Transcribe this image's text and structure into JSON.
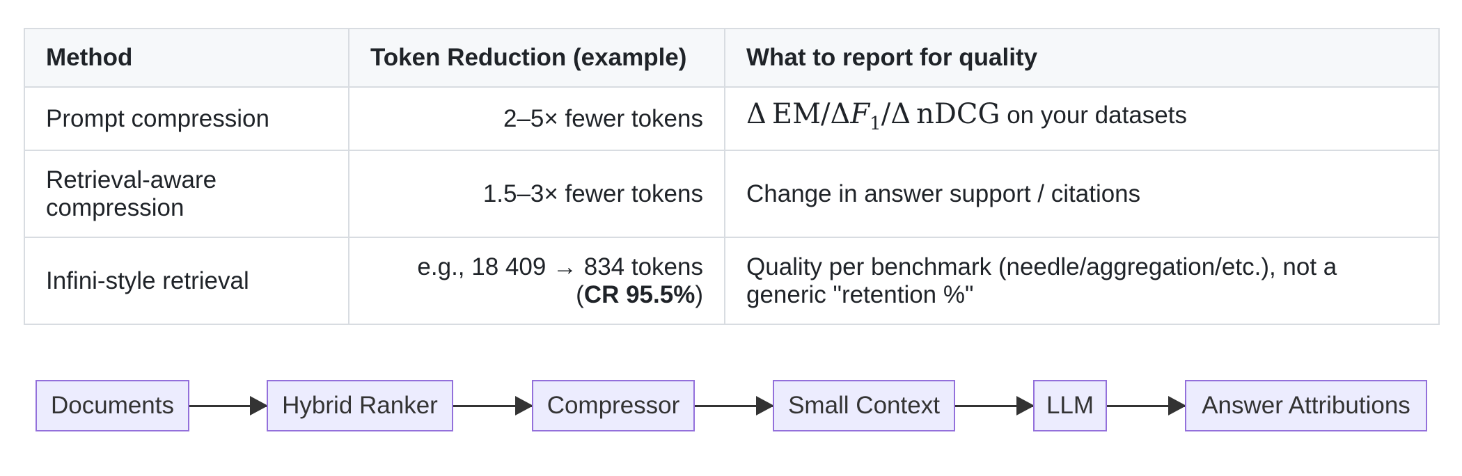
{
  "table": {
    "headers": [
      "Method",
      "Token Reduction (example)",
      "What to report for quality"
    ],
    "rows": [
      {
        "method": "Prompt compression",
        "reduction": "2–5× fewer tokens",
        "quality_tail": "on your datasets"
      },
      {
        "method": "Retrieval-aware compression",
        "reduction": "1.5–3× fewer tokens",
        "quality": "Change in answer support / citations"
      },
      {
        "method": "Infini-style retrieval",
        "reduction_line1": "e.g., 18 409 → 834 tokens",
        "reduction_cr": "CR 95.5%",
        "quality": "Quality per benchmark (needle/aggregation/etc.), not a generic \"retention %\""
      }
    ]
  },
  "flow": {
    "nodes": [
      "Documents",
      "Hybrid Ranker",
      "Compressor",
      "Small Context",
      "LLM",
      "Answer Attributions"
    ]
  },
  "colors": {
    "node_fill": "#ececfe",
    "node_border": "#9370db",
    "arrow": "#333333",
    "header_bg": "#f6f8fa",
    "grid": "#d8dce1"
  }
}
